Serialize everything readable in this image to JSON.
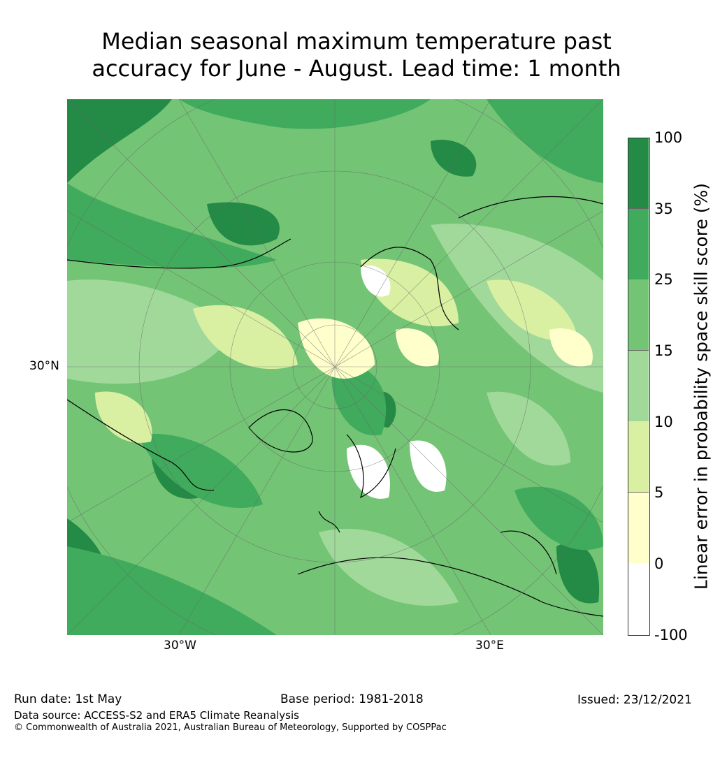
{
  "title": {
    "line1": "Median seasonal maximum temperature past",
    "line2": "accuracy for June - August. Lead time: 1 month"
  },
  "map": {
    "lat_label": "30°N",
    "lon_labels": [
      "30°W",
      "30°E"
    ]
  },
  "colorbar": {
    "label": "Linear error in probability space skill score (%)",
    "ticks": [
      "100",
      "35",
      "25",
      "15",
      "10",
      "5",
      "0",
      "-100"
    ],
    "colors": [
      "#238b45",
      "#41ab5d",
      "#74c476",
      "#a1d99b",
      "#d9f0a3",
      "#ffffcc",
      "#ffffff"
    ]
  },
  "footer": {
    "run_date": "Run date: 1st May",
    "base_period": "Base period: 1981-2018",
    "issued": "Issued: 23/12/2021",
    "data_source": "Data source: ACCESS-S2 and ERA5 Climate Reanalysis",
    "copyright": "© Commonwealth of Australia 2021, Australian Bureau of Meteorology, Supported by COSPPac"
  }
}
